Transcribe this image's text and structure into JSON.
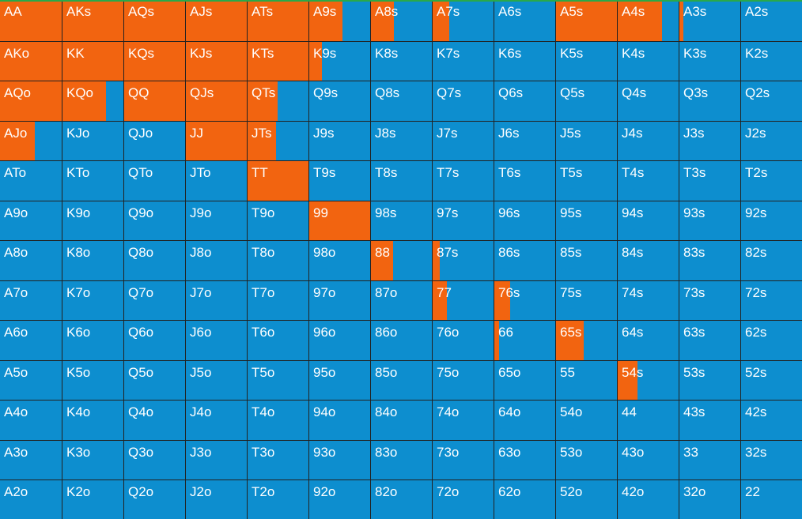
{
  "colors": {
    "raise": "#f26410",
    "fold": "#0d8ecf",
    "gridline": "#222222",
    "text": "#ffffff",
    "accent": "#2aa84a"
  },
  "hands": [
    [
      {
        "label": "AA",
        "raise": 1
      },
      {
        "label": "AKs",
        "raise": 1
      },
      {
        "label": "AQs",
        "raise": 1
      },
      {
        "label": "AJs",
        "raise": 1
      },
      {
        "label": "ATs",
        "raise": 1
      },
      {
        "label": "A9s",
        "raise": 0.54
      },
      {
        "label": "A8s",
        "raise": 0.38
      },
      {
        "label": "A7s",
        "raise": 0.27
      },
      {
        "label": "A6s",
        "raise": 0
      },
      {
        "label": "A5s",
        "raise": 1
      },
      {
        "label": "A4s",
        "raise": 0.73
      },
      {
        "label": "A3s",
        "raise": 0.06
      },
      {
        "label": "A2s",
        "raise": 0
      }
    ],
    [
      {
        "label": "AKo",
        "raise": 1
      },
      {
        "label": "KK",
        "raise": 1
      },
      {
        "label": "KQs",
        "raise": 1
      },
      {
        "label": "KJs",
        "raise": 1
      },
      {
        "label": "KTs",
        "raise": 1
      },
      {
        "label": "K9s",
        "raise": 0.21
      },
      {
        "label": "K8s",
        "raise": 0
      },
      {
        "label": "K7s",
        "raise": 0
      },
      {
        "label": "K6s",
        "raise": 0
      },
      {
        "label": "K5s",
        "raise": 0
      },
      {
        "label": "K4s",
        "raise": 0
      },
      {
        "label": "K3s",
        "raise": 0
      },
      {
        "label": "K2s",
        "raise": 0
      }
    ],
    [
      {
        "label": "AQo",
        "raise": 1
      },
      {
        "label": "KQo",
        "raise": 0.71
      },
      {
        "label": "QQ",
        "raise": 1
      },
      {
        "label": "QJs",
        "raise": 1
      },
      {
        "label": "QTs",
        "raise": 0.49
      },
      {
        "label": "Q9s",
        "raise": 0
      },
      {
        "label": "Q8s",
        "raise": 0
      },
      {
        "label": "Q7s",
        "raise": 0
      },
      {
        "label": "Q6s",
        "raise": 0
      },
      {
        "label": "Q5s",
        "raise": 0
      },
      {
        "label": "Q4s",
        "raise": 0
      },
      {
        "label": "Q3s",
        "raise": 0
      },
      {
        "label": "Q2s",
        "raise": 0
      }
    ],
    [
      {
        "label": "AJo",
        "raise": 0.56
      },
      {
        "label": "KJo",
        "raise": 0
      },
      {
        "label": "QJo",
        "raise": 0
      },
      {
        "label": "JJ",
        "raise": 1
      },
      {
        "label": "JTs",
        "raise": 0.47
      },
      {
        "label": "J9s",
        "raise": 0
      },
      {
        "label": "J8s",
        "raise": 0
      },
      {
        "label": "J7s",
        "raise": 0
      },
      {
        "label": "J6s",
        "raise": 0
      },
      {
        "label": "J5s",
        "raise": 0
      },
      {
        "label": "J4s",
        "raise": 0
      },
      {
        "label": "J3s",
        "raise": 0
      },
      {
        "label": "J2s",
        "raise": 0
      }
    ],
    [
      {
        "label": "ATo",
        "raise": 0
      },
      {
        "label": "KTo",
        "raise": 0
      },
      {
        "label": "QTo",
        "raise": 0
      },
      {
        "label": "JTo",
        "raise": 0
      },
      {
        "label": "TT",
        "raise": 1
      },
      {
        "label": "T9s",
        "raise": 0
      },
      {
        "label": "T8s",
        "raise": 0
      },
      {
        "label": "T7s",
        "raise": 0
      },
      {
        "label": "T6s",
        "raise": 0
      },
      {
        "label": "T5s",
        "raise": 0
      },
      {
        "label": "T4s",
        "raise": 0
      },
      {
        "label": "T3s",
        "raise": 0
      },
      {
        "label": "T2s",
        "raise": 0
      }
    ],
    [
      {
        "label": "A9o",
        "raise": 0
      },
      {
        "label": "K9o",
        "raise": 0
      },
      {
        "label": "Q9o",
        "raise": 0
      },
      {
        "label": "J9o",
        "raise": 0
      },
      {
        "label": "T9o",
        "raise": 0
      },
      {
        "label": "99",
        "raise": 1
      },
      {
        "label": "98s",
        "raise": 0
      },
      {
        "label": "97s",
        "raise": 0
      },
      {
        "label": "96s",
        "raise": 0
      },
      {
        "label": "95s",
        "raise": 0
      },
      {
        "label": "94s",
        "raise": 0
      },
      {
        "label": "93s",
        "raise": 0
      },
      {
        "label": "92s",
        "raise": 0
      }
    ],
    [
      {
        "label": "A8o",
        "raise": 0
      },
      {
        "label": "K8o",
        "raise": 0
      },
      {
        "label": "Q8o",
        "raise": 0
      },
      {
        "label": "J8o",
        "raise": 0
      },
      {
        "label": "T8o",
        "raise": 0
      },
      {
        "label": "98o",
        "raise": 0
      },
      {
        "label": "88",
        "raise": 0.36
      },
      {
        "label": "87s",
        "raise": 0.12
      },
      {
        "label": "86s",
        "raise": 0
      },
      {
        "label": "85s",
        "raise": 0
      },
      {
        "label": "84s",
        "raise": 0
      },
      {
        "label": "83s",
        "raise": 0
      },
      {
        "label": "82s",
        "raise": 0
      }
    ],
    [
      {
        "label": "A7o",
        "raise": 0
      },
      {
        "label": "K7o",
        "raise": 0
      },
      {
        "label": "Q7o",
        "raise": 0
      },
      {
        "label": "J7o",
        "raise": 0
      },
      {
        "label": "T7o",
        "raise": 0
      },
      {
        "label": "97o",
        "raise": 0
      },
      {
        "label": "87o",
        "raise": 0
      },
      {
        "label": "77",
        "raise": 0.23
      },
      {
        "label": "76s",
        "raise": 0.26
      },
      {
        "label": "75s",
        "raise": 0
      },
      {
        "label": "74s",
        "raise": 0
      },
      {
        "label": "73s",
        "raise": 0
      },
      {
        "label": "72s",
        "raise": 0
      }
    ],
    [
      {
        "label": "A6o",
        "raise": 0
      },
      {
        "label": "K6o",
        "raise": 0
      },
      {
        "label": "Q6o",
        "raise": 0
      },
      {
        "label": "J6o",
        "raise": 0
      },
      {
        "label": "T6o",
        "raise": 0
      },
      {
        "label": "96o",
        "raise": 0
      },
      {
        "label": "86o",
        "raise": 0
      },
      {
        "label": "76o",
        "raise": 0
      },
      {
        "label": "66",
        "raise": 0.08
      },
      {
        "label": "65s",
        "raise": 0.45
      },
      {
        "label": "64s",
        "raise": 0
      },
      {
        "label": "63s",
        "raise": 0
      },
      {
        "label": "62s",
        "raise": 0
      }
    ],
    [
      {
        "label": "A5o",
        "raise": 0
      },
      {
        "label": "K5o",
        "raise": 0
      },
      {
        "label": "Q5o",
        "raise": 0
      },
      {
        "label": "J5o",
        "raise": 0
      },
      {
        "label": "T5o",
        "raise": 0
      },
      {
        "label": "95o",
        "raise": 0
      },
      {
        "label": "85o",
        "raise": 0
      },
      {
        "label": "75o",
        "raise": 0
      },
      {
        "label": "65o",
        "raise": 0
      },
      {
        "label": "55",
        "raise": 0
      },
      {
        "label": "54s",
        "raise": 0.33
      },
      {
        "label": "53s",
        "raise": 0
      },
      {
        "label": "52s",
        "raise": 0
      }
    ],
    [
      {
        "label": "A4o",
        "raise": 0
      },
      {
        "label": "K4o",
        "raise": 0
      },
      {
        "label": "Q4o",
        "raise": 0
      },
      {
        "label": "J4o",
        "raise": 0
      },
      {
        "label": "T4o",
        "raise": 0
      },
      {
        "label": "94o",
        "raise": 0
      },
      {
        "label": "84o",
        "raise": 0
      },
      {
        "label": "74o",
        "raise": 0
      },
      {
        "label": "64o",
        "raise": 0
      },
      {
        "label": "54o",
        "raise": 0
      },
      {
        "label": "44",
        "raise": 0
      },
      {
        "label": "43s",
        "raise": 0
      },
      {
        "label": "42s",
        "raise": 0
      }
    ],
    [
      {
        "label": "A3o",
        "raise": 0
      },
      {
        "label": "K3o",
        "raise": 0
      },
      {
        "label": "Q3o",
        "raise": 0
      },
      {
        "label": "J3o",
        "raise": 0
      },
      {
        "label": "T3o",
        "raise": 0
      },
      {
        "label": "93o",
        "raise": 0
      },
      {
        "label": "83o",
        "raise": 0
      },
      {
        "label": "73o",
        "raise": 0
      },
      {
        "label": "63o",
        "raise": 0
      },
      {
        "label": "53o",
        "raise": 0
      },
      {
        "label": "43o",
        "raise": 0
      },
      {
        "label": "33",
        "raise": 0
      },
      {
        "label": "32s",
        "raise": 0
      }
    ],
    [
      {
        "label": "A2o",
        "raise": 0
      },
      {
        "label": "K2o",
        "raise": 0
      },
      {
        "label": "Q2o",
        "raise": 0
      },
      {
        "label": "J2o",
        "raise": 0
      },
      {
        "label": "T2o",
        "raise": 0
      },
      {
        "label": "92o",
        "raise": 0
      },
      {
        "label": "82o",
        "raise": 0
      },
      {
        "label": "72o",
        "raise": 0
      },
      {
        "label": "62o",
        "raise": 0
      },
      {
        "label": "52o",
        "raise": 0
      },
      {
        "label": "42o",
        "raise": 0
      },
      {
        "label": "32o",
        "raise": 0
      },
      {
        "label": "22",
        "raise": 0
      }
    ]
  ]
}
